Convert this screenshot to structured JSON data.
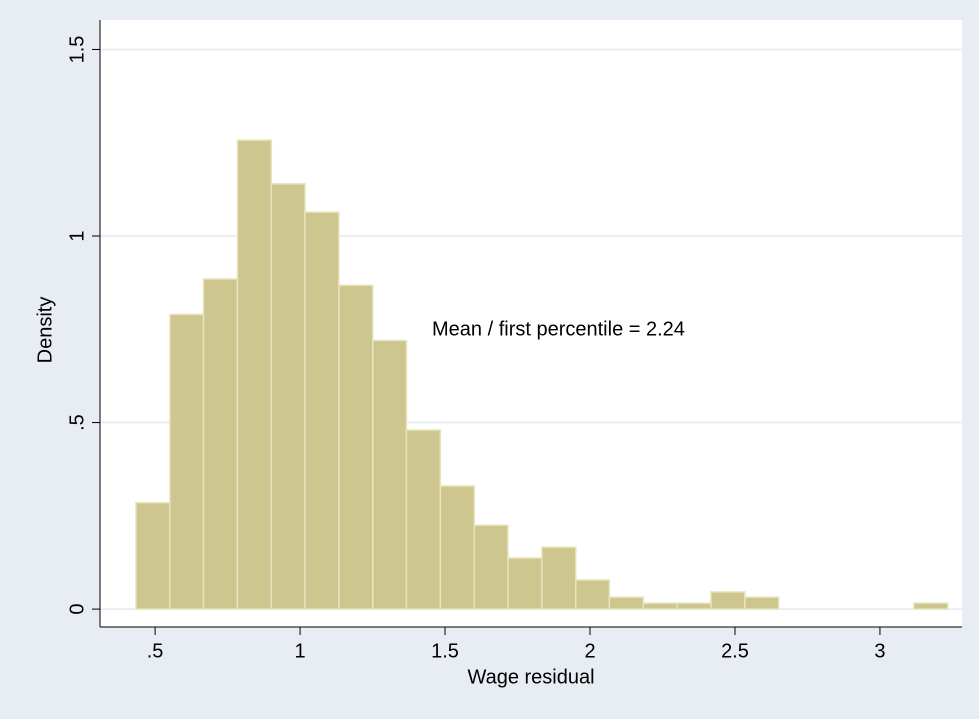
{
  "chart_data": {
    "type": "histogram",
    "bins": [
      0.434,
      0.551,
      0.667,
      0.784,
      0.901,
      1.017,
      1.134,
      1.251,
      1.367,
      1.484,
      1.601,
      1.717,
      1.834,
      1.951,
      2.067,
      2.184,
      2.301,
      2.417,
      2.534,
      2.651,
      2.767,
      2.884,
      3.001,
      3.117,
      3.234
    ],
    "values": [
      0.285,
      0.79,
      0.885,
      1.257,
      1.14,
      1.064,
      0.868,
      0.72,
      0.48,
      0.33,
      0.225,
      0.137,
      0.166,
      0.078,
      0.032,
      0.016,
      0.016,
      0.046,
      0.032,
      0,
      0,
      0,
      0,
      0.016
    ],
    "color": "#cdc68f",
    "xlabel": "Wage residual",
    "ylabel": "Density",
    "annotation": "Mean / first percentile = 2.24",
    "xlim": [
      0.31,
      3.283
    ],
    "ylim": [
      -0.048,
      1.579
    ],
    "xticks": [
      {
        "value": 0.5,
        "label": ".5"
      },
      1,
      1.5,
      2,
      2.5,
      3
    ],
    "yticks": [
      0,
      {
        "value": 0.5,
        "label": ".5"
      },
      1,
      1.5
    ],
    "grid": true
  }
}
